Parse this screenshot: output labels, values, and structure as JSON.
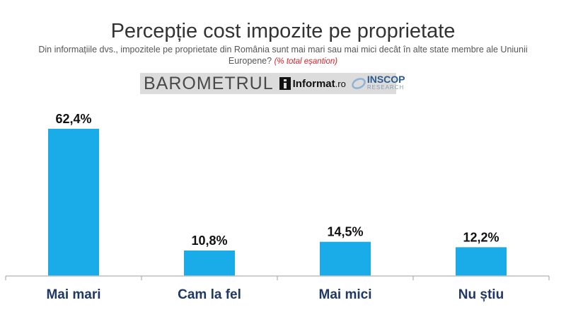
{
  "header": {
    "title": "Percepție cost impozite pe proprietate",
    "subtitle": "Din informațiile dvs., impozitele pe proprietate din România sunt mai mari sau mai mici decât în alte state membre ale Uniunii Europene?",
    "note": "(% total eșantion)"
  },
  "logos": {
    "barometrul": "BAROMETRUL",
    "informat": "Informat",
    "informat_suffix": ".ro",
    "inscop": "INSCOP",
    "research": "RESEARCH"
  },
  "colors": {
    "bar": "#1aace8",
    "axis": "#bfbfbf",
    "label": "#1f3864"
  },
  "chart_data": {
    "type": "bar",
    "categories": [
      "Mai mari",
      "Cam la fel",
      "Mai mici",
      "Nu știu"
    ],
    "values": [
      62.4,
      10.8,
      14.5,
      12.2
    ],
    "value_labels": [
      "62,4%",
      "10,8%",
      "14,5%",
      "12,2%"
    ],
    "title": "Percepție cost impozite pe proprietate",
    "xlabel": "",
    "ylabel": "",
    "ylim": [
      0,
      62.4
    ],
    "grid": false,
    "legend": "none"
  }
}
